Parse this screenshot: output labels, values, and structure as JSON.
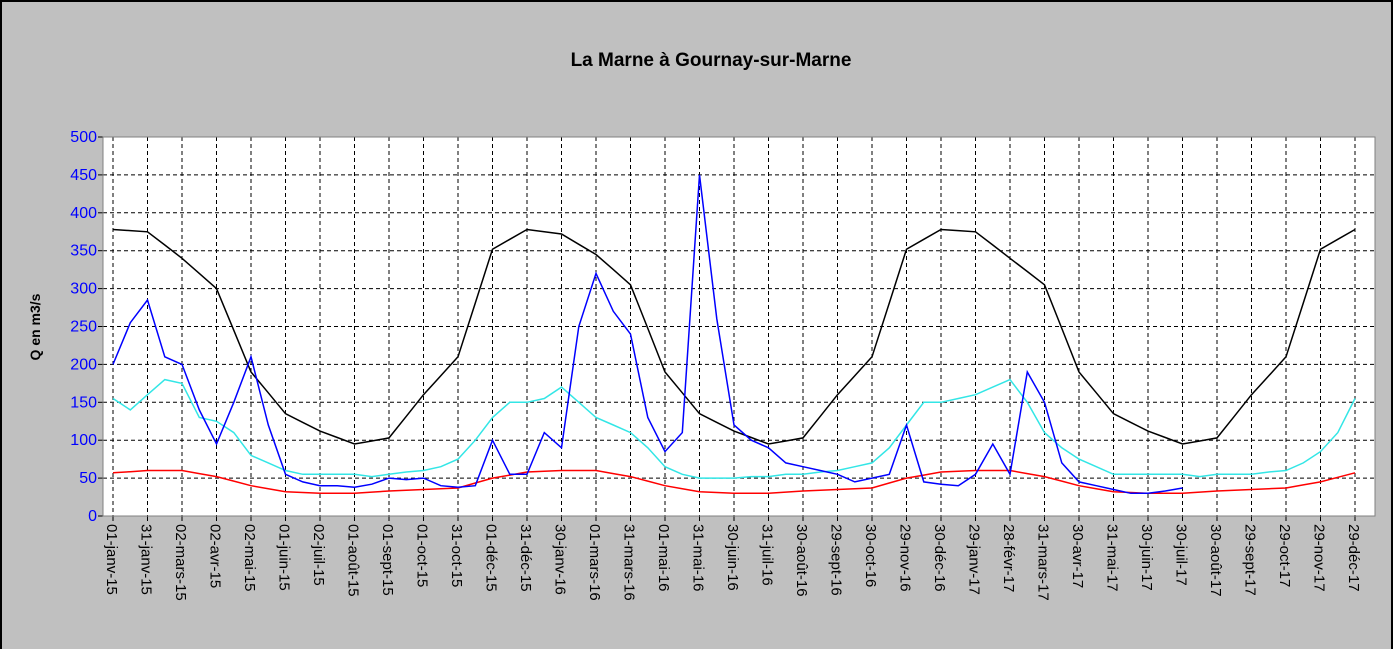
{
  "chart_data": {
    "type": "line",
    "title": "La Marne à Gournay-sur-Marne",
    "y_label": "Q en m3/s",
    "ylim": [
      0,
      500
    ],
    "yticks": [
      0,
      50,
      100,
      150,
      200,
      250,
      300,
      350,
      400,
      450,
      500
    ],
    "grid": true,
    "categories": [
      "01-janv-15",
      null,
      "31-janv-15",
      null,
      "02-mars-15",
      null,
      "02-avr-15",
      null,
      "02-mai-15",
      null,
      "01-juin-15",
      null,
      "02-juil-15",
      null,
      "01-août-15",
      null,
      "01-sept-15",
      null,
      "01-oct-15",
      null,
      "31-oct-15",
      null,
      "01-déc-15",
      null,
      "31-déc-15",
      null,
      "30-janv-16",
      null,
      "01-mars-16",
      null,
      "31-mars-16",
      null,
      "01-mai-16",
      null,
      "31-mai-16",
      null,
      "30-juin-16",
      null,
      "31-juil-16",
      null,
      "30-août-16",
      null,
      "29-sept-16",
      null,
      "30-oct-16",
      null,
      "29-nov-16",
      null,
      "30-déc-16",
      null,
      "29-janv-17",
      null,
      "28-févr-17",
      null,
      "31-mars-17",
      null,
      "30-avr-17",
      null,
      "31-mai-17",
      null,
      "30-juin-17",
      null,
      "30-juil-17",
      null,
      "30-août-17",
      null,
      "29-sept-17",
      null,
      "29-oct-17",
      null,
      "29-nov-17",
      null,
      "29-déc-17"
    ],
    "series": [
      {
        "color": "#000000",
        "values": [
          378,
          376.5,
          375,
          357.5,
          340,
          320,
          300,
          245,
          190,
          162.5,
          135,
          123.5,
          112,
          103.5,
          95,
          99,
          103,
          131.5,
          160,
          185,
          210,
          281,
          352,
          365,
          378,
          375,
          372,
          358.5,
          345,
          325,
          305,
          247.5,
          190,
          162.5,
          135,
          123.5,
          112,
          103.5,
          95,
          99,
          103,
          131.5,
          160,
          185,
          210,
          281,
          352,
          365,
          378,
          376.5,
          375,
          357.5,
          340,
          322.5,
          305,
          247.5,
          190,
          162.5,
          135,
          123.5,
          112,
          103.5,
          95,
          99,
          103,
          131.5,
          160,
          185,
          210,
          281,
          352,
          365,
          378
        ]
      },
      {
        "color": "#33e6e6",
        "values": [
          155,
          140,
          160,
          180,
          175,
          130,
          125,
          110,
          80,
          70,
          60,
          55,
          55,
          55,
          55,
          52,
          55,
          58,
          60,
          65,
          75,
          100,
          130,
          150,
          150,
          155,
          170,
          150,
          130,
          120,
          110,
          90,
          65,
          55,
          50,
          50,
          50,
          52,
          52,
          55,
          55,
          58,
          60,
          65,
          70,
          90,
          120,
          150,
          150,
          155,
          160,
          170,
          180,
          150,
          110,
          90,
          75,
          65,
          55,
          55,
          55,
          55,
          55,
          52,
          55,
          55,
          55,
          58,
          60,
          70,
          85,
          110,
          155
        ]
      },
      {
        "color": "#ff0000",
        "values": [
          57,
          58.5,
          60,
          60,
          60,
          56,
          52,
          46,
          40,
          36,
          32,
          31,
          30,
          30,
          30,
          31.5,
          33,
          34,
          35,
          36,
          37,
          43.5,
          50,
          54,
          58,
          59,
          60,
          60,
          60,
          56,
          52,
          46,
          40,
          36,
          32,
          31,
          30,
          30,
          30,
          31.5,
          33,
          34,
          35,
          36,
          37,
          43.5,
          50,
          54,
          58,
          59,
          60,
          60,
          60,
          56,
          52,
          46,
          40,
          36,
          32,
          31,
          30,
          30,
          30,
          31.5,
          33,
          34,
          35,
          36,
          37,
          41,
          45,
          51,
          57
        ]
      },
      {
        "color": "#0000ff",
        "values": [
          200,
          255,
          285,
          210,
          200,
          140,
          95,
          150,
          210,
          120,
          55,
          45,
          40,
          40,
          38,
          42,
          50,
          48,
          50,
          40,
          38,
          40,
          100,
          55,
          55,
          110,
          90,
          250,
          320,
          270,
          240,
          130,
          85,
          110,
          450,
          260,
          120,
          100,
          90,
          70,
          65,
          60,
          55,
          45,
          50,
          55,
          120,
          45,
          42,
          40,
          55,
          95,
          55,
          190,
          150,
          70,
          45,
          40,
          35,
          30,
          30,
          33,
          37,
          null,
          null,
          null,
          null,
          null,
          null,
          null,
          null,
          null,
          null
        ]
      }
    ]
  }
}
